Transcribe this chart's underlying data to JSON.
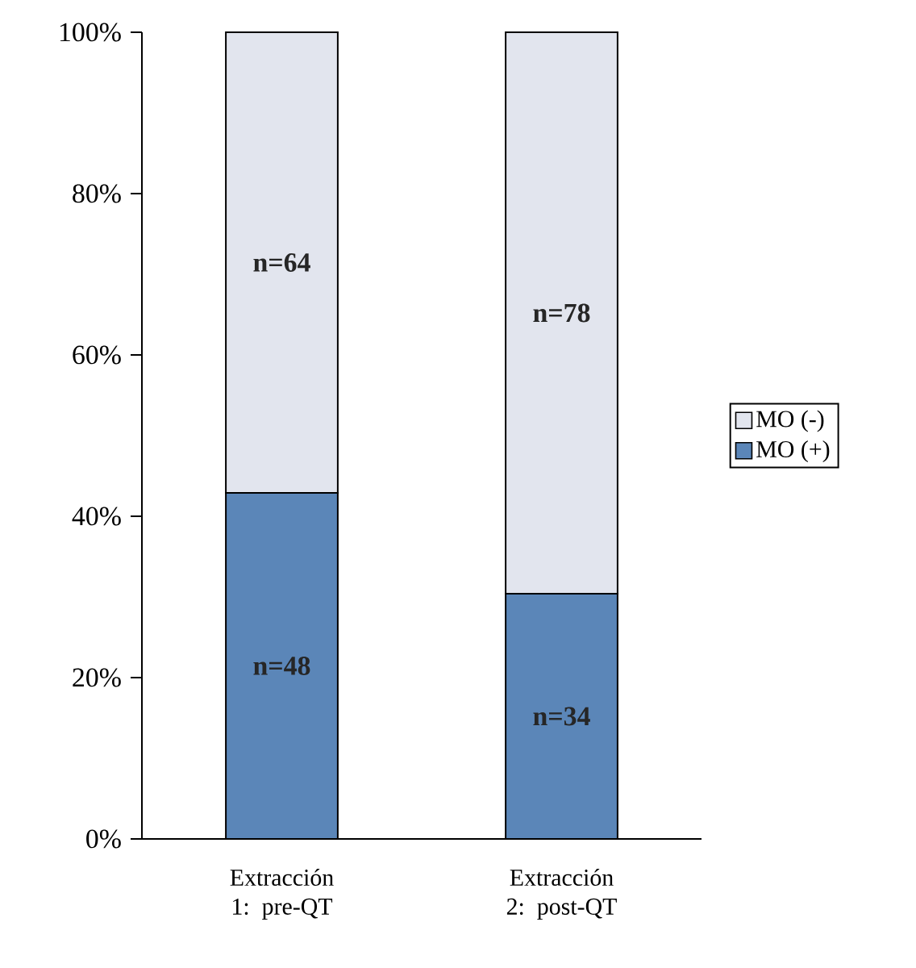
{
  "chart_data": {
    "type": "bar",
    "stacked": true,
    "categories": [
      "Extracción 1: pre-QT",
      "Extracción 2: post-QT"
    ],
    "series": [
      {
        "name": "MO (+)",
        "color": "#5b86b8",
        "values": [
          42.9,
          30.4
        ]
      },
      {
        "name": "MO (-)",
        "color": "#e2e5ee",
        "values": [
          57.1,
          69.6
        ]
      }
    ],
    "ylim": [
      0,
      100
    ],
    "yticks": [
      {
        "value": 0,
        "label": "0%"
      },
      {
        "value": 20,
        "label": "20%"
      },
      {
        "value": 40,
        "label": "40%"
      },
      {
        "value": 60,
        "label": "60%"
      },
      {
        "value": 80,
        "label": "80%"
      },
      {
        "value": 100,
        "label": "100%"
      }
    ],
    "annotations": [
      "n=48",
      "n=34",
      "n=64",
      "n=78"
    ],
    "legend": "right",
    "grid": false
  }
}
